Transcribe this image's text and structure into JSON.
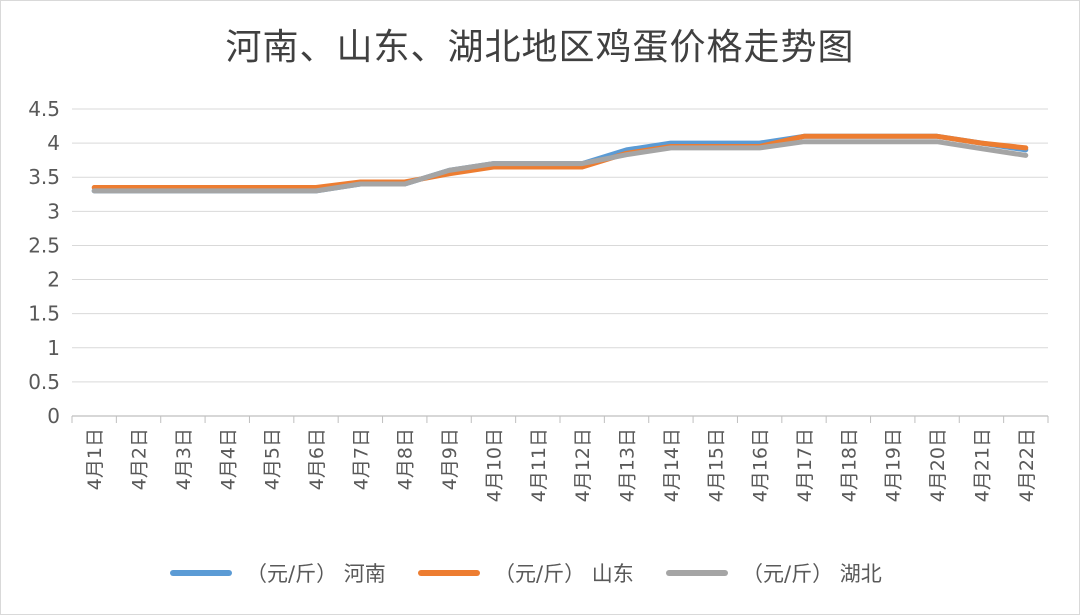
{
  "chart_data": {
    "type": "line",
    "title": "河南、山东、湖北地区鸡蛋价格走势图",
    "xlabel": "",
    "ylabel": "",
    "ylim": [
      0,
      4.5
    ],
    "yticks": [
      "0",
      "0.5",
      "1",
      "1.5",
      "2",
      "2.5",
      "3",
      "3.5",
      "4",
      "4.5"
    ],
    "grid": true,
    "legend_position": "bottom",
    "categories": [
      "4月1日",
      "4月2日",
      "4月3日",
      "4月4日",
      "4月5日",
      "4月6日",
      "4月7日",
      "4月8日",
      "4月9日",
      "4月10日",
      "4月11日",
      "4月12日",
      "4月13日",
      "4月14日",
      "4月15日",
      "4月16日",
      "4月17日",
      "4月18日",
      "4月19日",
      "4月20日",
      "4月21日",
      "4月22日"
    ],
    "series": [
      {
        "name": "（元/斤） 河南",
        "color": "#5b9bd5",
        "values": [
          3.3,
          3.3,
          3.3,
          3.3,
          3.3,
          3.3,
          3.4,
          3.4,
          3.6,
          3.7,
          3.7,
          3.7,
          3.9,
          4.0,
          4.0,
          4.0,
          4.1,
          4.1,
          4.1,
          4.1,
          4.0,
          3.9
        ]
      },
      {
        "name": "（元/斤） 山东",
        "color": "#ed7d31",
        "values": [
          3.35,
          3.35,
          3.35,
          3.35,
          3.35,
          3.35,
          3.43,
          3.43,
          3.55,
          3.65,
          3.65,
          3.65,
          3.85,
          3.95,
          3.95,
          3.95,
          4.1,
          4.1,
          4.1,
          4.1,
          4.0,
          3.93
        ]
      },
      {
        "name": "（元/斤） 湖北",
        "color": "#a5a5a5",
        "values": [
          3.3,
          3.3,
          3.3,
          3.3,
          3.3,
          3.3,
          3.4,
          3.4,
          3.6,
          3.7,
          3.7,
          3.7,
          3.83,
          3.93,
          3.93,
          3.93,
          4.02,
          4.02,
          4.02,
          4.02,
          3.92,
          3.82
        ]
      }
    ]
  }
}
